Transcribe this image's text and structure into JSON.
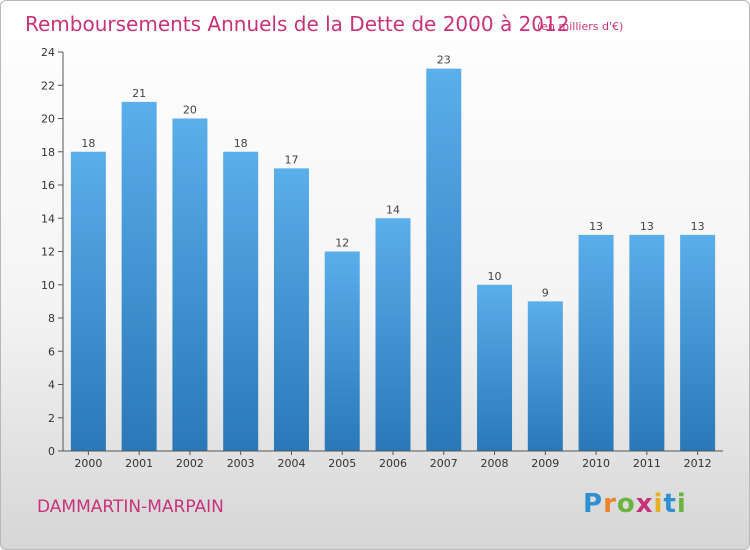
{
  "chart_data": {
    "type": "bar",
    "title": "Remboursements Annuels de la Dette de 2000 à 2012",
    "subtitle": "(en milliers d'€)",
    "xlabel": "",
    "ylabel": "",
    "categories": [
      "2000",
      "2001",
      "2002",
      "2003",
      "2004",
      "2005",
      "2006",
      "2007",
      "2008",
      "2009",
      "2010",
      "2011",
      "2012"
    ],
    "values": [
      18,
      21,
      20,
      18,
      17,
      12,
      14,
      23,
      10,
      9,
      13,
      13,
      13
    ],
    "ylim": [
      0,
      24
    ],
    "yticks": [
      0,
      2,
      4,
      6,
      8,
      10,
      12,
      14,
      16,
      18,
      20,
      22,
      24
    ],
    "grid": false,
    "bar_color_top": "#5aaeea",
    "bar_color_bottom": "#2a78b8"
  },
  "footer": {
    "commune": "DAMMARTIN-MARPAIN",
    "logo_letters": [
      "P",
      "r",
      "o",
      "x",
      "i",
      "t",
      "i"
    ]
  },
  "colors": {
    "accent": "#c8327a"
  }
}
